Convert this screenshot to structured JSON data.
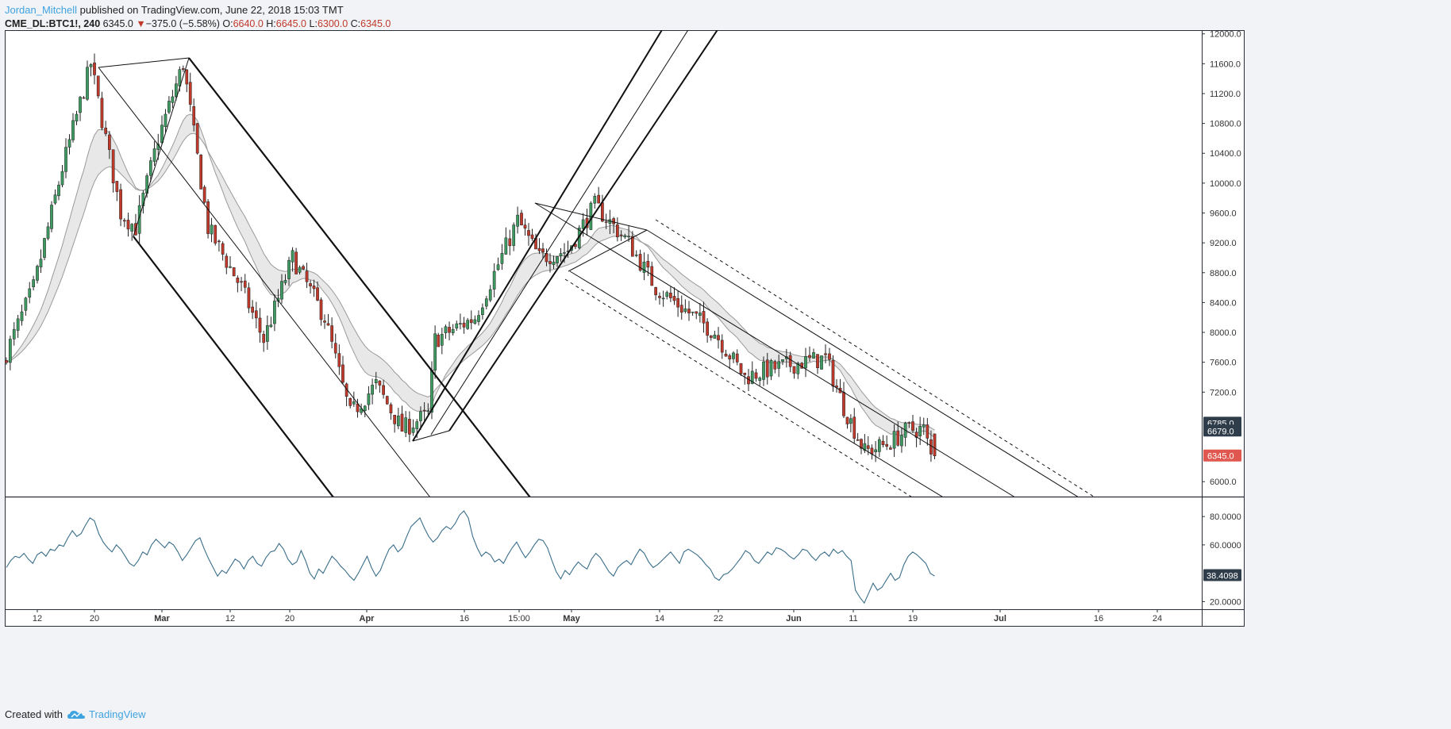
{
  "header": {
    "author": "Jordan_Mitchell",
    "published_text": "published on TradingView.com, June 22, 2018 15:03 TMT"
  },
  "symbol_bar": {
    "symbol": "CME_DL:BTC1!, 240",
    "last": "6345.0",
    "change_arrow": "▼",
    "change": "−375.0 (−5.58%)",
    "open_label": "O:",
    "open": "6640.0",
    "high_label": "H:",
    "high": "6645.0",
    "low_label": "L:",
    "low": "6300.0",
    "close_label": "C:",
    "close": "6345.0"
  },
  "footer": {
    "created_with": "Created with",
    "brand": "TradingView",
    "brand_icon": "cloud-logo-icon"
  },
  "colors": {
    "up": "#3d9a61",
    "down": "#c0392b",
    "rsi_line": "#3a6e8a",
    "band_fill": "#d6d6d6",
    "price_tag": "#e0574f",
    "dark_tag": "#2f3d4b"
  },
  "chart_data": [
    {
      "type": "candlestick",
      "title": "",
      "ylim": [
        5800,
        12050
      ],
      "price_ticks": [
        "12000.0",
        "11600.0",
        "11200.0",
        "10800.0",
        "10400.0",
        "10000.0",
        "9600.0",
        "9200.0",
        "8800.0",
        "8400.0",
        "8000.0",
        "7600.0",
        "7200.0",
        "6000.0"
      ],
      "price_labels": [
        {
          "text": "6785.0",
          "value": 6785,
          "style": "dark"
        },
        {
          "text": "6679.0",
          "value": 6679,
          "style": "dark"
        },
        {
          "text": "6345.0",
          "value": 6345,
          "style": "red"
        }
      ],
      "x_ticks": [
        "12",
        "20",
        "Mar",
        "12",
        "20",
        "Apr",
        "16",
        "15:00",
        "May",
        "14",
        "22",
        "Jun",
        "11",
        "19",
        "Jul",
        "16",
        "24"
      ],
      "ohlc_path_approx": [
        {
          "date": "2018-02-08",
          "close": 7600
        },
        {
          "date": "2018-02-12",
          "close": 8600
        },
        {
          "date": "2018-02-16",
          "close": 10200
        },
        {
          "date": "2018-02-20",
          "close": 11600
        },
        {
          "date": "2018-02-24",
          "close": 9600
        },
        {
          "date": "2018-02-26",
          "close": 9400
        },
        {
          "date": "2018-03-01",
          "close": 10600
        },
        {
          "date": "2018-03-05",
          "close": 11600
        },
        {
          "date": "2018-03-09",
          "close": 9400
        },
        {
          "date": "2018-03-14",
          "close": 8600
        },
        {
          "date": "2018-03-17",
          "close": 7900
        },
        {
          "date": "2018-03-21",
          "close": 9000
        },
        {
          "date": "2018-03-26",
          "close": 8200
        },
        {
          "date": "2018-03-30",
          "close": 6900
        },
        {
          "date": "2018-04-03",
          "close": 7300
        },
        {
          "date": "2018-04-07",
          "close": 6700
        },
        {
          "date": "2018-04-11",
          "close": 6900
        },
        {
          "date": "2018-04-12",
          "close": 7900
        },
        {
          "date": "2018-04-18",
          "close": 8200
        },
        {
          "date": "2018-04-24",
          "close": 9500
        },
        {
          "date": "2018-04-27",
          "close": 9000
        },
        {
          "date": "2018-05-01",
          "close": 9100
        },
        {
          "date": "2018-05-05",
          "close": 9700
        },
        {
          "date": "2018-05-10",
          "close": 9200
        },
        {
          "date": "2018-05-14",
          "close": 8600
        },
        {
          "date": "2018-05-18",
          "close": 8300
        },
        {
          "date": "2018-05-22",
          "close": 8000
        },
        {
          "date": "2018-05-26",
          "close": 7400
        },
        {
          "date": "2018-05-29",
          "close": 7500
        },
        {
          "date": "2018-06-03",
          "close": 7600
        },
        {
          "date": "2018-06-07",
          "close": 7650
        },
        {
          "date": "2018-06-10",
          "close": 7000
        },
        {
          "date": "2018-06-13",
          "close": 6400
        },
        {
          "date": "2018-06-16",
          "close": 6500
        },
        {
          "date": "2018-06-19",
          "close": 6700
        },
        {
          "date": "2018-06-21",
          "close": 6700
        },
        {
          "date": "2018-06-22",
          "close": 6345
        }
      ]
    },
    {
      "type": "line",
      "title": "",
      "ylim": [
        15,
        88
      ],
      "ticks": [
        "80.0000",
        "60.0000",
        "20.0000"
      ],
      "last_value_label": "38.4098",
      "series": [
        {
          "values": [
            44,
            49,
            52,
            51,
            54,
            50,
            47,
            53,
            55,
            52,
            57,
            56,
            60,
            59,
            65,
            70,
            66,
            68,
            74,
            79,
            77,
            68,
            62,
            58,
            55,
            60,
            57,
            52,
            47,
            45,
            49,
            55,
            53,
            60,
            64,
            61,
            58,
            62,
            60,
            55,
            49,
            53,
            58,
            63,
            65,
            57,
            50,
            44,
            38,
            42,
            40,
            45,
            50,
            48,
            43,
            49,
            52,
            47,
            45,
            51,
            55,
            56,
            61,
            57,
            50,
            46,
            48,
            56,
            49,
            40,
            36,
            43,
            40,
            46,
            52,
            49,
            45,
            42,
            38,
            35,
            40,
            46,
            52,
            44,
            38,
            42,
            50,
            57,
            60,
            55,
            58,
            66,
            73,
            76,
            79,
            72,
            66,
            62,
            65,
            70,
            73,
            71,
            75,
            81,
            84,
            79,
            66,
            58,
            52,
            55,
            53,
            48,
            50,
            47,
            53,
            58,
            62,
            56,
            51,
            55,
            60,
            64,
            63,
            58,
            49,
            41,
            36,
            42,
            39,
            44,
            48,
            45,
            43,
            50,
            54,
            51,
            46,
            41,
            38,
            44,
            47,
            49,
            46,
            52,
            57,
            54,
            48,
            44,
            46,
            49,
            52,
            55,
            51,
            47,
            55,
            57,
            55,
            53,
            50,
            46,
            43,
            37,
            35,
            39,
            40,
            43,
            47,
            51,
            56,
            54,
            49,
            47,
            51,
            55,
            53,
            58,
            57,
            55,
            52,
            50,
            53,
            57,
            56,
            52,
            49,
            53,
            55,
            52,
            57,
            54,
            56,
            52,
            49,
            28,
            23,
            19,
            26,
            33,
            28,
            30,
            35,
            40,
            35,
            37,
            46,
            52,
            55,
            53,
            50,
            47,
            40,
            38
          ]
        }
      ]
    }
  ]
}
